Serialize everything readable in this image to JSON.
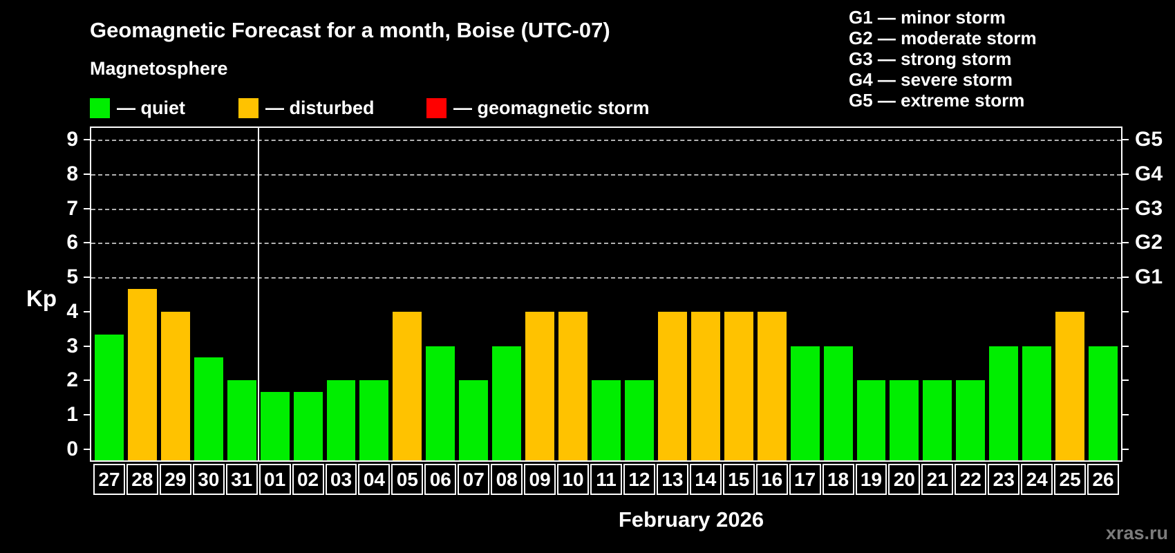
{
  "header": {
    "title": "Geomagnetic Forecast for a month, Boise (UTC-07)",
    "subtitle": "Magnetosphere"
  },
  "legend": {
    "items": [
      {
        "key": "quiet",
        "label": "— quiet",
        "color": "#00ee00"
      },
      {
        "key": "disturbed",
        "label": "— disturbed",
        "color": "#ffc200"
      },
      {
        "key": "storm",
        "label": "— geomagnetic storm",
        "color": "#ff0000"
      }
    ]
  },
  "g_legend": {
    "lines": [
      "G1 — minor storm",
      "G2 — moderate storm",
      "G3 — strong storm",
      "G4 — severe storm",
      "G5 — extreme storm"
    ]
  },
  "watermark": "xras.ru",
  "chart_data": {
    "type": "bar",
    "title": "Geomagnetic Forecast for a month, Boise (UTC-07)",
    "subtitle": "Magnetosphere",
    "xlabel": "February 2026",
    "ylabel": "Kp",
    "ylim": [
      0,
      9
    ],
    "grid": "dashed horizontal at Kp 5-9",
    "categories": [
      "27",
      "28",
      "29",
      "30",
      "31",
      "01",
      "02",
      "03",
      "04",
      "05",
      "06",
      "07",
      "08",
      "09",
      "10",
      "11",
      "12",
      "13",
      "14",
      "15",
      "16",
      "17",
      "18",
      "19",
      "20",
      "21",
      "22",
      "23",
      "24",
      "25",
      "26"
    ],
    "values": [
      3.33,
      4.67,
      4,
      2.67,
      2,
      1.67,
      1.67,
      2,
      2,
      4,
      3,
      2,
      3,
      4,
      4,
      2,
      2,
      4,
      4,
      4,
      4,
      3,
      3,
      2,
      2,
      2,
      2,
      3,
      3,
      4,
      3
    ],
    "statuses": [
      "quiet",
      "disturbed",
      "disturbed",
      "quiet",
      "quiet",
      "quiet",
      "quiet",
      "quiet",
      "quiet",
      "disturbed",
      "quiet",
      "quiet",
      "quiet",
      "disturbed",
      "disturbed",
      "quiet",
      "quiet",
      "disturbed",
      "disturbed",
      "disturbed",
      "disturbed",
      "quiet",
      "quiet",
      "quiet",
      "quiet",
      "quiet",
      "quiet",
      "quiet",
      "quiet",
      "disturbed",
      "quiet"
    ],
    "colors": {
      "quiet": "#00ee00",
      "disturbed": "#ffc200",
      "storm": "#ff0000"
    },
    "y_ticks": [
      0,
      1,
      2,
      3,
      4,
      5,
      6,
      7,
      8,
      9
    ],
    "gridlines_kp": [
      5,
      6,
      7,
      8,
      9
    ],
    "right_axis_labels": [
      {
        "kp": 5,
        "label": "G1"
      },
      {
        "kp": 6,
        "label": "G2"
      },
      {
        "kp": 7,
        "label": "G3"
      },
      {
        "kp": 8,
        "label": "G4"
      },
      {
        "kp": 9,
        "label": "G5"
      }
    ],
    "month_divider_after_index": 4
  }
}
